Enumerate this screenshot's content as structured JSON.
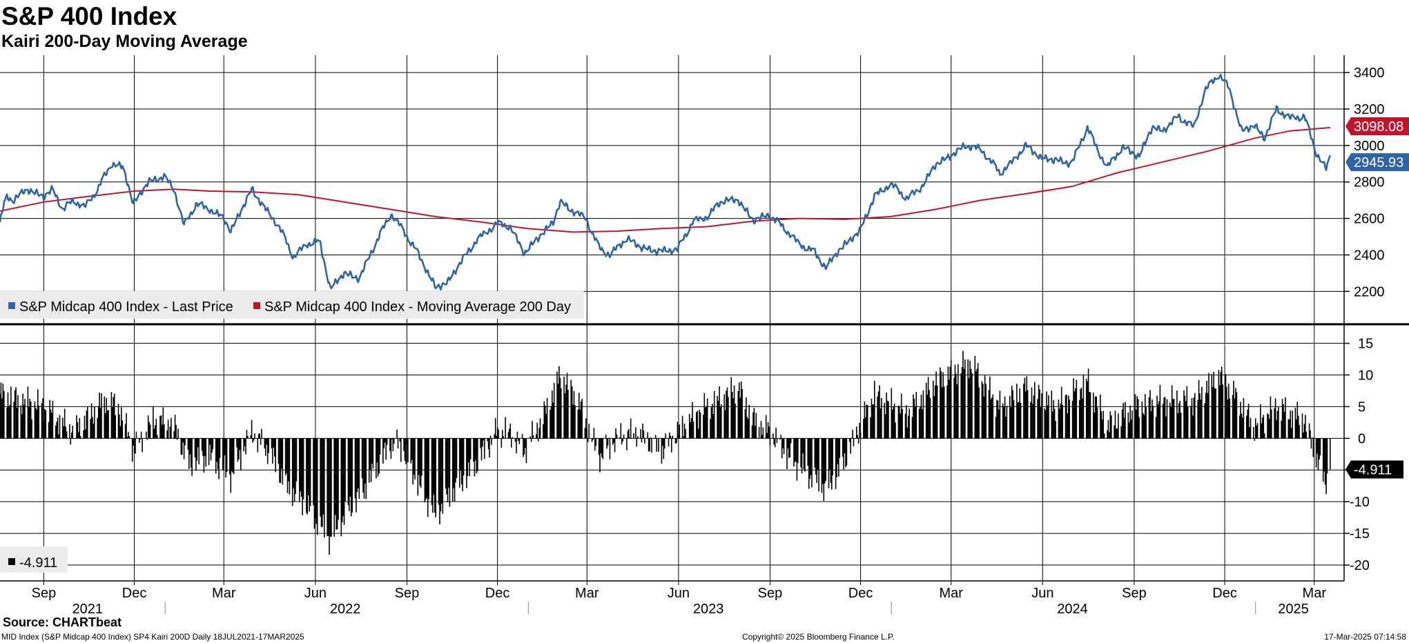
{
  "title": "S&P 400 Index",
  "subtitle": "Kairi 200-Day Moving Average",
  "colors": {
    "price": "#2e64a6",
    "ma": "#c0152f",
    "kairi": "#000000",
    "grid": "#000000"
  },
  "legend": {
    "price": "S&P Midcap 400 Index - Last Price",
    "ma": "S&P Midcap 400 Index - Moving Average 200 Day",
    "kairi": "-4.911"
  },
  "footer": {
    "source": "Source: CHARTbeat",
    "info": "MID Index (S&P Midcap 400 Index) SP4 Kairi 200D  Daily 18JUL2021-17MAR2025",
    "copyright": "Copyright© 2025 Bloomberg Finance L.P.",
    "timestamp": "17-Mar-2025 07:14:58"
  },
  "chart_data": [
    {
      "type": "line",
      "panel": "upper",
      "ylim": [
        2050,
        3480
      ],
      "y_ticks": [
        "2200",
        "2400",
        "2600",
        "2800",
        "3000",
        "3200",
        "3400"
      ],
      "grid": true,
      "legend_position": "bottom-left",
      "series": [
        {
          "name": "S&P Midcap 400 Index - Last Price",
          "last_value_label": "2945.93",
          "points": [
            [
              "2021-07-19",
              2580
            ],
            [
              "2021-07-25",
              2720
            ],
            [
              "2021-08-01",
              2700
            ],
            [
              "2021-08-15",
              2760
            ],
            [
              "2021-09-01",
              2720
            ],
            [
              "2021-09-10",
              2760
            ],
            [
              "2021-09-20",
              2650
            ],
            [
              "2021-10-01",
              2700
            ],
            [
              "2021-10-12",
              2660
            ],
            [
              "2021-10-25",
              2760
            ],
            [
              "2021-11-08",
              2900
            ],
            [
              "2021-11-20",
              2880
            ],
            [
              "2021-11-30",
              2680
            ],
            [
              "2021-12-15",
              2800
            ],
            [
              "2021-12-31",
              2830
            ],
            [
              "2022-01-10",
              2760
            ],
            [
              "2022-01-20",
              2560
            ],
            [
              "2022-02-01",
              2680
            ],
            [
              "2022-02-15",
              2650
            ],
            [
              "2022-03-01",
              2600
            ],
            [
              "2022-03-08",
              2530
            ],
            [
              "2022-03-29",
              2760
            ],
            [
              "2022-04-12",
              2650
            ],
            [
              "2022-04-25",
              2560
            ],
            [
              "2022-05-10",
              2390
            ],
            [
              "2022-05-24",
              2460
            ],
            [
              "2022-06-05",
              2480
            ],
            [
              "2022-06-16",
              2215
            ],
            [
              "2022-06-30",
              2300
            ],
            [
              "2022-07-15",
              2270
            ],
            [
              "2022-08-01",
              2470
            ],
            [
              "2022-08-16",
              2625
            ],
            [
              "2022-08-25",
              2560
            ],
            [
              "2022-09-10",
              2430
            ],
            [
              "2022-09-30",
              2220
            ],
            [
              "2022-10-12",
              2250
            ],
            [
              "2022-10-25",
              2360
            ],
            [
              "2022-11-10",
              2480
            ],
            [
              "2022-11-30",
              2570
            ],
            [
              "2022-12-13",
              2560
            ],
            [
              "2022-12-28",
              2410
            ],
            [
              "2023-01-12",
              2500
            ],
            [
              "2023-01-26",
              2580
            ],
            [
              "2023-02-02",
              2690
            ],
            [
              "2023-02-15",
              2640
            ],
            [
              "2023-02-28",
              2600
            ],
            [
              "2023-03-13",
              2440
            ],
            [
              "2023-03-24",
              2400
            ],
            [
              "2023-04-10",
              2490
            ],
            [
              "2023-04-25",
              2440
            ],
            [
              "2023-05-10",
              2420
            ],
            [
              "2023-05-31",
              2430
            ],
            [
              "2023-06-15",
              2580
            ],
            [
              "2023-06-30",
              2610
            ],
            [
              "2023-07-15",
              2700
            ],
            [
              "2023-07-31",
              2700
            ],
            [
              "2023-08-15",
              2590
            ],
            [
              "2023-08-31",
              2620
            ],
            [
              "2023-09-15",
              2550
            ],
            [
              "2023-09-30",
              2460
            ],
            [
              "2023-10-15",
              2420
            ],
            [
              "2023-10-27",
              2330
            ],
            [
              "2023-11-10",
              2430
            ],
            [
              "2023-11-30",
              2530
            ],
            [
              "2023-12-15",
              2720
            ],
            [
              "2023-12-31",
              2790
            ],
            [
              "2024-01-17",
              2710
            ],
            [
              "2024-01-31",
              2770
            ],
            [
              "2024-02-15",
              2900
            ],
            [
              "2024-02-29",
              2940
            ],
            [
              "2024-03-15",
              3000
            ],
            [
              "2024-03-31",
              2980
            ],
            [
              "2024-04-19",
              2850
            ],
            [
              "2024-04-30",
              2900
            ],
            [
              "2024-05-15",
              3000
            ],
            [
              "2024-05-31",
              2930
            ],
            [
              "2024-06-15",
              2920
            ],
            [
              "2024-06-30",
              2900
            ],
            [
              "2024-07-16",
              3100
            ],
            [
              "2024-07-24",
              3000
            ],
            [
              "2024-08-05",
              2880
            ],
            [
              "2024-08-20",
              2990
            ],
            [
              "2024-09-06",
              2940
            ],
            [
              "2024-09-19",
              3100
            ],
            [
              "2024-09-30",
              3080
            ],
            [
              "2024-10-15",
              3160
            ],
            [
              "2024-10-31",
              3100
            ],
            [
              "2024-11-11",
              3300
            ],
            [
              "2024-11-25",
              3390
            ],
            [
              "2024-12-05",
              3320
            ],
            [
              "2024-12-18",
              3080
            ],
            [
              "2024-12-31",
              3110
            ],
            [
              "2025-01-10",
              3040
            ],
            [
              "2025-01-22",
              3200
            ],
            [
              "2025-02-05",
              3150
            ],
            [
              "2025-02-19",
              3160
            ],
            [
              "2025-03-03",
              2960
            ],
            [
              "2025-03-13",
              2870
            ],
            [
              "2025-03-17",
              2945.93
            ]
          ]
        },
        {
          "name": "S&P Midcap 400 Index - Moving Average 200 Day",
          "last_value_label": "3098.08",
          "points": [
            [
              "2021-07-19",
              2640
            ],
            [
              "2021-09-01",
              2690
            ],
            [
              "2021-10-15",
              2720
            ],
            [
              "2021-12-01",
              2750
            ],
            [
              "2022-01-10",
              2760
            ],
            [
              "2022-02-15",
              2750
            ],
            [
              "2022-03-31",
              2745
            ],
            [
              "2022-05-15",
              2730
            ],
            [
              "2022-06-30",
              2690
            ],
            [
              "2022-08-15",
              2650
            ],
            [
              "2022-09-30",
              2610
            ],
            [
              "2022-11-15",
              2580
            ],
            [
              "2022-12-31",
              2545
            ],
            [
              "2023-02-15",
              2525
            ],
            [
              "2023-03-31",
              2530
            ],
            [
              "2023-05-15",
              2545
            ],
            [
              "2023-06-30",
              2555
            ],
            [
              "2023-08-15",
              2585
            ],
            [
              "2023-09-30",
              2600
            ],
            [
              "2023-11-15",
              2595
            ],
            [
              "2023-12-31",
              2610
            ],
            [
              "2024-02-15",
              2650
            ],
            [
              "2024-03-31",
              2700
            ],
            [
              "2024-05-15",
              2735
            ],
            [
              "2024-06-30",
              2775
            ],
            [
              "2024-08-15",
              2850
            ],
            [
              "2024-09-30",
              2910
            ],
            [
              "2024-11-15",
              2970
            ],
            [
              "2024-12-31",
              3040
            ],
            [
              "2025-02-05",
              3080
            ],
            [
              "2025-03-17",
              3098.08
            ]
          ]
        }
      ]
    },
    {
      "type": "bar",
      "panel": "lower",
      "name": "Kairi",
      "ylim": [
        -22.5,
        18
      ],
      "y_ticks": [
        "15",
        "10",
        "5",
        "0",
        "-5",
        "-10",
        "-15",
        "-20"
      ],
      "grid": true,
      "last_value_label": "-4.911",
      "profile": [
        [
          "2021-07-19",
          7
        ],
        [
          "2021-09-01",
          5
        ],
        [
          "2021-10-01",
          1
        ],
        [
          "2021-11-01",
          6
        ],
        [
          "2021-11-15",
          5
        ],
        [
          "2021-12-01",
          -2
        ],
        [
          "2021-12-20",
          3
        ],
        [
          "2022-01-10",
          2
        ],
        [
          "2022-01-25",
          -4
        ],
        [
          "2022-02-15",
          -3
        ],
        [
          "2022-03-08",
          -6
        ],
        [
          "2022-03-29",
          1
        ],
        [
          "2022-04-15",
          -2
        ],
        [
          "2022-05-05",
          -8
        ],
        [
          "2022-05-20",
          -10
        ],
        [
          "2022-06-16",
          -16
        ],
        [
          "2022-07-01",
          -12
        ],
        [
          "2022-07-20",
          -8
        ],
        [
          "2022-08-16",
          -1
        ],
        [
          "2022-08-25",
          -1
        ],
        [
          "2022-09-15",
          -8
        ],
        [
          "2022-09-30",
          -12
        ],
        [
          "2022-10-20",
          -8
        ],
        [
          "2022-11-10",
          -4
        ],
        [
          "2022-11-30",
          1
        ],
        [
          "2022-12-13",
          1
        ],
        [
          "2022-12-28",
          -2
        ],
        [
          "2023-01-15",
          3
        ],
        [
          "2023-02-02",
          10
        ],
        [
          "2023-02-20",
          6
        ],
        [
          "2023-03-13",
          -3
        ],
        [
          "2023-03-31",
          0
        ],
        [
          "2023-04-20",
          1
        ],
        [
          "2023-05-15",
          -2
        ],
        [
          "2023-06-01",
          1
        ],
        [
          "2023-06-20",
          4
        ],
        [
          "2023-07-31",
          8
        ],
        [
          "2023-08-15",
          3
        ],
        [
          "2023-09-01",
          1
        ],
        [
          "2023-09-20",
          -3
        ],
        [
          "2023-10-27",
          -8
        ],
        [
          "2023-11-10",
          -5
        ],
        [
          "2023-11-25",
          0
        ],
        [
          "2023-12-15",
          7
        ],
        [
          "2024-01-17",
          4
        ],
        [
          "2024-02-15",
          9
        ],
        [
          "2024-03-20",
          12
        ],
        [
          "2024-04-19",
          5
        ],
        [
          "2024-05-15",
          8
        ],
        [
          "2024-06-15",
          5
        ],
        [
          "2024-07-16",
          9
        ],
        [
          "2024-08-05",
          2
        ],
        [
          "2024-09-01",
          5
        ],
        [
          "2024-09-30",
          6
        ],
        [
          "2024-10-31",
          6
        ],
        [
          "2024-11-25",
          10
        ],
        [
          "2024-12-10",
          7
        ],
        [
          "2024-12-31",
          2
        ],
        [
          "2025-01-22",
          5
        ],
        [
          "2025-02-19",
          3
        ],
        [
          "2025-03-01",
          -2
        ],
        [
          "2025-03-12",
          -7
        ],
        [
          "2025-03-17",
          -4.911
        ]
      ]
    }
  ],
  "x_axis": {
    "range": [
      "2021-07-19",
      "2025-03-31"
    ],
    "months": [
      {
        "label": "Sep",
        "date": "2021-09-01"
      },
      {
        "label": "Dec",
        "date": "2021-12-01"
      },
      {
        "label": "Mar",
        "date": "2022-03-01"
      },
      {
        "label": "Jun",
        "date": "2022-06-01"
      },
      {
        "label": "Sep",
        "date": "2022-09-01"
      },
      {
        "label": "Dec",
        "date": "2022-12-01"
      },
      {
        "label": "Mar",
        "date": "2023-03-01"
      },
      {
        "label": "Jun",
        "date": "2023-06-01"
      },
      {
        "label": "Sep",
        "date": "2023-09-01"
      },
      {
        "label": "Dec",
        "date": "2023-12-01"
      },
      {
        "label": "Mar",
        "date": "2024-03-01"
      },
      {
        "label": "Jun",
        "date": "2024-06-01"
      },
      {
        "label": "Sep",
        "date": "2024-09-01"
      },
      {
        "label": "Dec",
        "date": "2024-12-01"
      },
      {
        "label": "Mar",
        "date": "2025-03-01"
      }
    ],
    "years": [
      {
        "label": "2021",
        "date": "2021-10-15"
      },
      {
        "label": "2022",
        "date": "2022-07-01"
      },
      {
        "label": "2023",
        "date": "2023-07-01"
      },
      {
        "label": "2024",
        "date": "2024-07-01"
      },
      {
        "label": "2025",
        "date": "2025-02-08"
      }
    ],
    "year_boundaries": [
      "2022-01-01",
      "2023-01-01",
      "2024-01-01",
      "2025-01-01"
    ]
  }
}
